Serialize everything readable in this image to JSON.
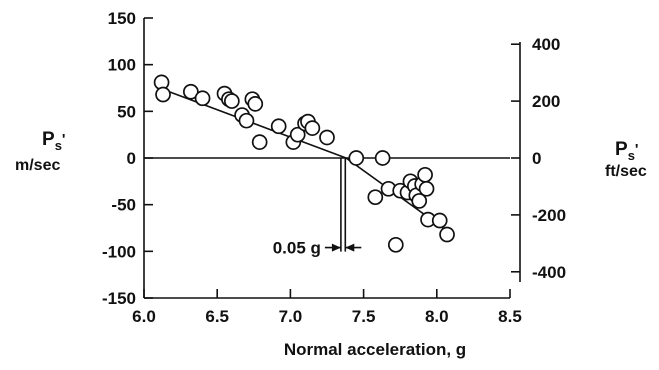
{
  "chart_data": {
    "type": "scatter",
    "xlabel": "Normal acceleration, g",
    "xlim": [
      6.0,
      8.5
    ],
    "x_ticks": [
      "6.0",
      "6.5",
      "7.0",
      "7.5",
      "8.0",
      "8.5"
    ],
    "left_axis": {
      "label_main": "P",
      "label_sub": "s",
      "label_prime": "'",
      "unit": "m/sec",
      "ylim": [
        -150,
        150
      ],
      "ticks": [
        "150",
        "100",
        "50",
        "0",
        "-50",
        "-100",
        "-150"
      ]
    },
    "right_axis": {
      "label_main": "P",
      "label_sub": "s",
      "label_prime": "'",
      "unit": "ft/sec",
      "ylim": [
        -492,
        492
      ],
      "ticks": [
        "400",
        "200",
        "0",
        "-200",
        "-400"
      ]
    },
    "points": [
      {
        "x": 6.12,
        "y": 81
      },
      {
        "x": 6.13,
        "y": 68
      },
      {
        "x": 6.32,
        "y": 71
      },
      {
        "x": 6.4,
        "y": 64
      },
      {
        "x": 6.55,
        "y": 69
      },
      {
        "x": 6.58,
        "y": 63
      },
      {
        "x": 6.6,
        "y": 61
      },
      {
        "x": 6.67,
        "y": 46
      },
      {
        "x": 6.7,
        "y": 40
      },
      {
        "x": 6.74,
        "y": 63
      },
      {
        "x": 6.76,
        "y": 58
      },
      {
        "x": 6.79,
        "y": 17
      },
      {
        "x": 6.92,
        "y": 34
      },
      {
        "x": 7.02,
        "y": 17
      },
      {
        "x": 7.05,
        "y": 25
      },
      {
        "x": 7.1,
        "y": 37
      },
      {
        "x": 7.12,
        "y": 39
      },
      {
        "x": 7.15,
        "y": 32
      },
      {
        "x": 7.25,
        "y": 22
      },
      {
        "x": 7.45,
        "y": 0
      },
      {
        "x": 7.58,
        "y": -42
      },
      {
        "x": 7.63,
        "y": 0
      },
      {
        "x": 7.67,
        "y": -33
      },
      {
        "x": 7.72,
        "y": -93
      },
      {
        "x": 7.75,
        "y": -35
      },
      {
        "x": 7.8,
        "y": -37
      },
      {
        "x": 7.82,
        "y": -25
      },
      {
        "x": 7.85,
        "y": -30
      },
      {
        "x": 7.86,
        "y": -40
      },
      {
        "x": 7.88,
        "y": -46
      },
      {
        "x": 7.9,
        "y": -28
      },
      {
        "x": 7.92,
        "y": -18
      },
      {
        "x": 7.93,
        "y": -33
      },
      {
        "x": 7.94,
        "y": -66
      },
      {
        "x": 8.02,
        "y": -67
      },
      {
        "x": 8.07,
        "y": -82
      }
    ],
    "fit_lines": [
      [
        {
          "x": 6.12,
          "y": 74
        },
        {
          "x": 7.38,
          "y": 0
        }
      ],
      [
        {
          "x": 7.38,
          "y": 0
        },
        {
          "x": 8.07,
          "y": -78
        }
      ]
    ],
    "annotation": {
      "text": "0.05 g",
      "x_left": 7.345,
      "x_right": 7.375,
      "y": -96
    }
  }
}
